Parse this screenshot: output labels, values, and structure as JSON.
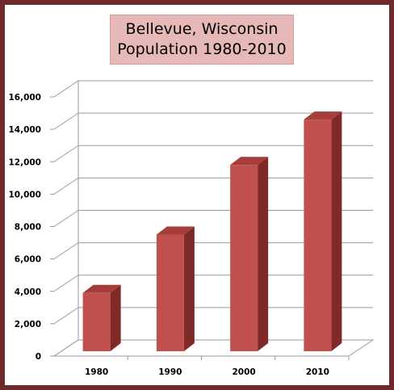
{
  "chart_data": {
    "type": "bar",
    "title_lines": [
      "Bellevue, Wisconsin",
      "Population 1980-2010"
    ],
    "categories": [
      "1980",
      "1990",
      "2000",
      "2010"
    ],
    "values": [
      3900,
      7500,
      11800,
      14600
    ],
    "yticks": [
      "0",
      "2,000",
      "4,000",
      "6,000",
      "8,000",
      "10,000",
      "12,000",
      "14,000",
      "16,000"
    ],
    "ylim": [
      0,
      16000
    ],
    "grid": true,
    "legend": "none",
    "colors": {
      "bar_front": "#c0504d",
      "bar_side": "#7f2a28",
      "bar_top": "#a53e3b",
      "frame": "#6e2a2a",
      "title_bg": "#e6b8b7"
    }
  }
}
